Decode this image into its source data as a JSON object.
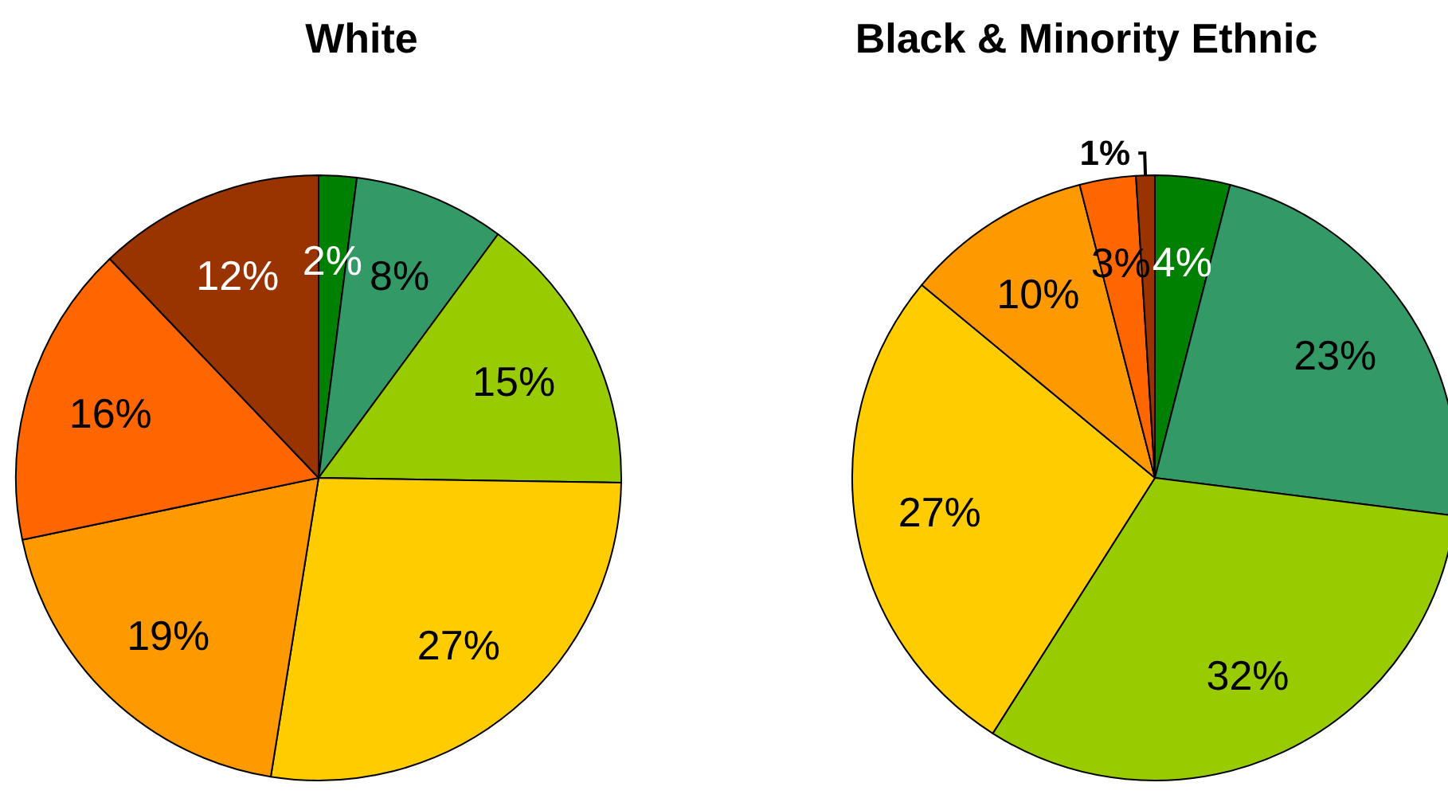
{
  "chart_data": [
    {
      "type": "pie",
      "title": "White",
      "categories": [
        null,
        null,
        null,
        null,
        null,
        null,
        null
      ],
      "values": [
        2,
        8,
        15,
        27,
        19,
        16,
        12
      ],
      "value_labels": [
        "2%",
        "8%",
        "15%",
        "27%",
        "19%",
        "16%",
        "12%"
      ],
      "colors": [
        "#008000",
        "#339966",
        "#99cc00",
        "#ffcc00",
        "#ff9900",
        "#ff6600",
        "#993300"
      ]
    },
    {
      "type": "pie",
      "title": "Black & Minority Ethnic",
      "categories": [
        null,
        null,
        null,
        null,
        null,
        null,
        null
      ],
      "values": [
        4,
        23,
        32,
        27,
        10,
        3,
        1
      ],
      "value_labels": [
        "4%",
        "23%",
        "32%",
        "27%",
        "10%",
        "3%",
        "1%"
      ],
      "colors": [
        "#008000",
        "#339966",
        "#99cc00",
        "#ffcc00",
        "#ff9900",
        "#ff6600",
        "#993300"
      ]
    }
  ]
}
